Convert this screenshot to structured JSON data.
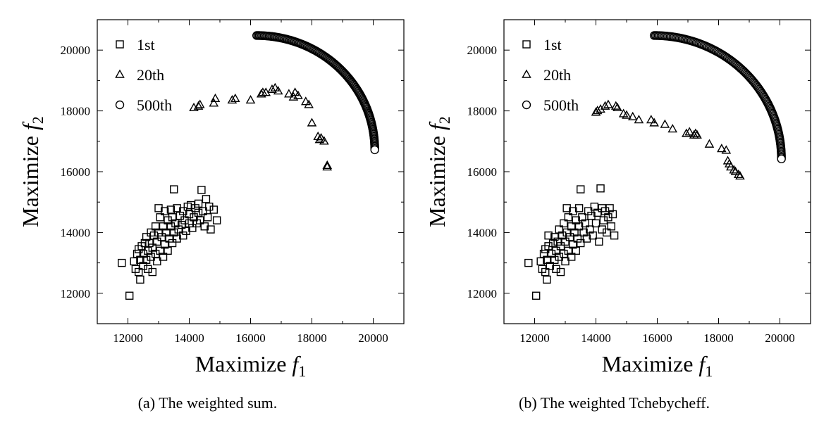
{
  "chart_data": [
    {
      "type": "scatter",
      "caption": "(a) The weighted sum.",
      "xlabel": "Maximize f1",
      "ylabel": "Maximize f2",
      "xlim": [
        11000,
        21000
      ],
      "ylim": [
        11000,
        21000
      ],
      "xticks": [
        12000,
        14000,
        16000,
        18000,
        20000
      ],
      "yticks": [
        12000,
        14000,
        16000,
        18000,
        20000
      ],
      "legend_position": "top-left",
      "series": [
        {
          "name": "1st",
          "marker": "square",
          "points": [
            [
              11800,
              13000
            ],
            [
              12050,
              11920
            ],
            [
              12200,
              13050
            ],
            [
              12250,
              12800
            ],
            [
              12300,
              13300
            ],
            [
              12350,
              12700
            ],
            [
              12350,
              13450
            ],
            [
              12400,
              12450
            ],
            [
              12400,
              13100
            ],
            [
              12450,
              13550
            ],
            [
              12500,
              12900
            ],
            [
              12500,
              13300
            ],
            [
              12550,
              13650
            ],
            [
              12600,
              13100
            ],
            [
              12600,
              13850
            ],
            [
              12650,
              12800
            ],
            [
              12650,
              13400
            ],
            [
              12700,
              13650
            ],
            [
              12750,
              13200
            ],
            [
              12750,
              14000
            ],
            [
              12800,
              12700
            ],
            [
              12800,
              13500
            ],
            [
              12850,
              13900
            ],
            [
              12900,
              13300
            ],
            [
              12900,
              14200
            ],
            [
              12950,
              13050
            ],
            [
              12950,
              13700
            ],
            [
              13000,
              14000
            ],
            [
              13000,
              14800
            ],
            [
              13050,
              13400
            ],
            [
              13050,
              14500
            ],
            [
              13100,
              13850
            ],
            [
              13150,
              13200
            ],
            [
              13150,
              14200
            ],
            [
              13200,
              13600
            ],
            [
              13200,
              14700
            ],
            [
              13250,
              14000
            ],
            [
              13300,
              13400
            ],
            [
              13300,
              14400
            ],
            [
              13350,
              13800
            ],
            [
              13400,
              14200
            ],
            [
              13400,
              14750
            ],
            [
              13450,
              13650
            ],
            [
              13450,
              14500
            ],
            [
              13500,
              14000
            ],
            [
              13500,
              15420
            ],
            [
              13550,
              14300
            ],
            [
              13600,
              13800
            ],
            [
              13600,
              14800
            ],
            [
              13650,
              14100
            ],
            [
              13700,
              14550
            ],
            [
              13750,
              14250
            ],
            [
              13800,
              13900
            ],
            [
              13800,
              14700
            ],
            [
              13850,
              14400
            ],
            [
              13900,
              14050
            ],
            [
              13950,
              14850
            ],
            [
              14000,
              14300
            ],
            [
              14000,
              14600
            ],
            [
              14050,
              14900
            ],
            [
              14100,
              14150
            ],
            [
              14150,
              14500
            ],
            [
              14200,
              14800
            ],
            [
              14250,
              14300
            ],
            [
              14300,
              14650
            ],
            [
              14300,
              14950
            ],
            [
              14350,
              14400
            ],
            [
              14400,
              15400
            ],
            [
              14450,
              14700
            ],
            [
              14500,
              14200
            ],
            [
              14550,
              15100
            ],
            [
              14600,
              14500
            ],
            [
              14650,
              14850
            ],
            [
              14700,
              14100
            ],
            [
              14800,
              14750
            ],
            [
              14900,
              14400
            ]
          ]
        },
        {
          "name": "20th",
          "marker": "triangle",
          "points": [
            [
              14150,
              18100
            ],
            [
              14300,
              18150
            ],
            [
              14350,
              18200
            ],
            [
              14800,
              18250
            ],
            [
              14850,
              18400
            ],
            [
              15400,
              18350
            ],
            [
              15500,
              18400
            ],
            [
              16000,
              18350
            ],
            [
              16350,
              18550
            ],
            [
              16400,
              18600
            ],
            [
              16500,
              18600
            ],
            [
              16700,
              18700
            ],
            [
              16800,
              18750
            ],
            [
              16900,
              18650
            ],
            [
              17250,
              18550
            ],
            [
              17400,
              18450
            ],
            [
              17450,
              18600
            ],
            [
              17550,
              18500
            ],
            [
              17800,
              18300
            ],
            [
              17900,
              18200
            ],
            [
              18000,
              17600
            ],
            [
              18200,
              17150
            ],
            [
              18250,
              17050
            ],
            [
              18300,
              17100
            ],
            [
              18400,
              17000
            ],
            [
              18500,
              16200
            ],
            [
              18500,
              16150
            ]
          ]
        },
        {
          "name": "500th",
          "marker": "circle",
          "arc": {
            "start": [
              16200,
              20480
            ],
            "end": [
              20050,
              16720
            ],
            "count": 150
          }
        }
      ]
    },
    {
      "type": "scatter",
      "caption": "(b) The weighted Tchebycheff.",
      "xlabel": "Maximize f1",
      "ylabel": "Maximize f2",
      "xlim": [
        11000,
        21000
      ],
      "ylim": [
        11000,
        21000
      ],
      "xticks": [
        12000,
        14000,
        16000,
        18000,
        20000
      ],
      "yticks": [
        12000,
        14000,
        16000,
        18000,
        20000
      ],
      "legend_position": "top-left",
      "series": [
        {
          "name": "1st",
          "marker": "square",
          "points": [
            [
              11800,
              13000
            ],
            [
              12050,
              11920
            ],
            [
              12200,
              13050
            ],
            [
              12250,
              12800
            ],
            [
              12300,
              13300
            ],
            [
              12350,
              12700
            ],
            [
              12350,
              13450
            ],
            [
              12400,
              12450
            ],
            [
              12400,
              13100
            ],
            [
              12450,
              13550
            ],
            [
              12450,
              13900
            ],
            [
              12500,
              12900
            ],
            [
              12550,
              13300
            ],
            [
              12600,
              13650
            ],
            [
              12650,
              13100
            ],
            [
              12650,
              13850
            ],
            [
              12700,
              12800
            ],
            [
              12700,
              13400
            ],
            [
              12750,
              13700
            ],
            [
              12800,
              13200
            ],
            [
              12800,
              14100
            ],
            [
              12850,
              12700
            ],
            [
              12850,
              13550
            ],
            [
              12900,
              13900
            ],
            [
              12950,
              13300
            ],
            [
              12950,
              14300
            ],
            [
              13000,
              13050
            ],
            [
              13000,
              13700
            ],
            [
              13050,
              14000
            ],
            [
              13050,
              14800
            ],
            [
              13100,
              13400
            ],
            [
              13100,
              14500
            ],
            [
              13150,
              13850
            ],
            [
              13200,
              13200
            ],
            [
              13200,
              14200
            ],
            [
              13250,
              13600
            ],
            [
              13250,
              14700
            ],
            [
              13300,
              14000
            ],
            [
              13350,
              13400
            ],
            [
              13350,
              14400
            ],
            [
              13400,
              13800
            ],
            [
              13450,
              14200
            ],
            [
              13450,
              14800
            ],
            [
              13500,
              13650
            ],
            [
              13500,
              15420
            ],
            [
              13550,
              14500
            ],
            [
              13600,
              14000
            ],
            [
              13650,
              14300
            ],
            [
              13700,
              13800
            ],
            [
              13750,
              14700
            ],
            [
              13800,
              14100
            ],
            [
              13850,
              14550
            ],
            [
              13900,
              13900
            ],
            [
              13950,
              14850
            ],
            [
              14000,
              14300
            ],
            [
              14050,
              14650
            ],
            [
              14100,
              13700
            ],
            [
              14150,
              15450
            ],
            [
              14200,
              14100
            ],
            [
              14200,
              14800
            ],
            [
              14250,
              14400
            ],
            [
              14300,
              14700
            ],
            [
              14350,
              14000
            ],
            [
              14400,
              14500
            ],
            [
              14450,
              14800
            ],
            [
              14500,
              14200
            ],
            [
              14550,
              14600
            ],
            [
              14600,
              13900
            ]
          ]
        },
        {
          "name": "20th",
          "marker": "triangle",
          "points": [
            [
              14000,
              17950
            ],
            [
              14050,
              18000
            ],
            [
              14150,
              18050
            ],
            [
              14300,
              18150
            ],
            [
              14400,
              18200
            ],
            [
              14650,
              18150
            ],
            [
              14700,
              18100
            ],
            [
              14900,
              17900
            ],
            [
              15000,
              17850
            ],
            [
              15200,
              17800
            ],
            [
              15400,
              17700
            ],
            [
              15800,
              17700
            ],
            [
              15900,
              17600
            ],
            [
              16250,
              17550
            ],
            [
              16500,
              17400
            ],
            [
              16950,
              17250
            ],
            [
              17050,
              17300
            ],
            [
              17200,
              17200
            ],
            [
              17250,
              17250
            ],
            [
              17300,
              17200
            ],
            [
              17700,
              16900
            ],
            [
              18100,
              16750
            ],
            [
              18250,
              16700
            ],
            [
              18300,
              16350
            ],
            [
              18350,
              16250
            ],
            [
              18400,
              16150
            ],
            [
              18500,
              16050
            ],
            [
              18550,
              16000
            ],
            [
              18650,
              15900
            ],
            [
              18700,
              15850
            ]
          ]
        },
        {
          "name": "500th",
          "marker": "circle",
          "arc": {
            "start": [
              15900,
              20480
            ],
            "end": [
              20050,
              16420
            ],
            "count": 150
          }
        }
      ]
    }
  ]
}
